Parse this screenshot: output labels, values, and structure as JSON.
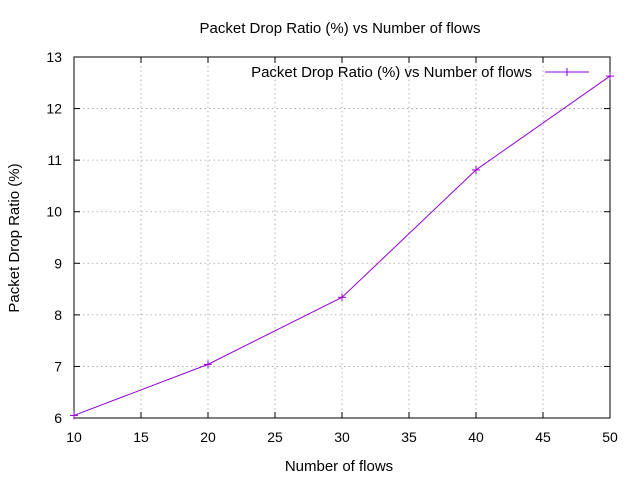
{
  "chart_data": {
    "type": "line",
    "title": "Packet Drop Ratio (%) vs Number of flows",
    "xlabel": "Number of flows",
    "ylabel": "Packet Drop Ratio (%)",
    "xlim": [
      10,
      50
    ],
    "ylim": [
      6,
      13
    ],
    "x_ticks": [
      10,
      15,
      20,
      25,
      30,
      35,
      40,
      45,
      50
    ],
    "y_ticks": [
      6,
      7,
      8,
      9,
      10,
      11,
      12,
      13
    ],
    "grid": true,
    "legend_position": "top-right",
    "series": [
      {
        "name": "Packet Drop Ratio (%) vs Number of flows",
        "color": "#9400d3",
        "marker": "plus",
        "x": [
          10,
          20,
          30,
          40,
          50
        ],
        "y": [
          6.05,
          7.04,
          8.34,
          10.81,
          12.63
        ]
      }
    ]
  }
}
